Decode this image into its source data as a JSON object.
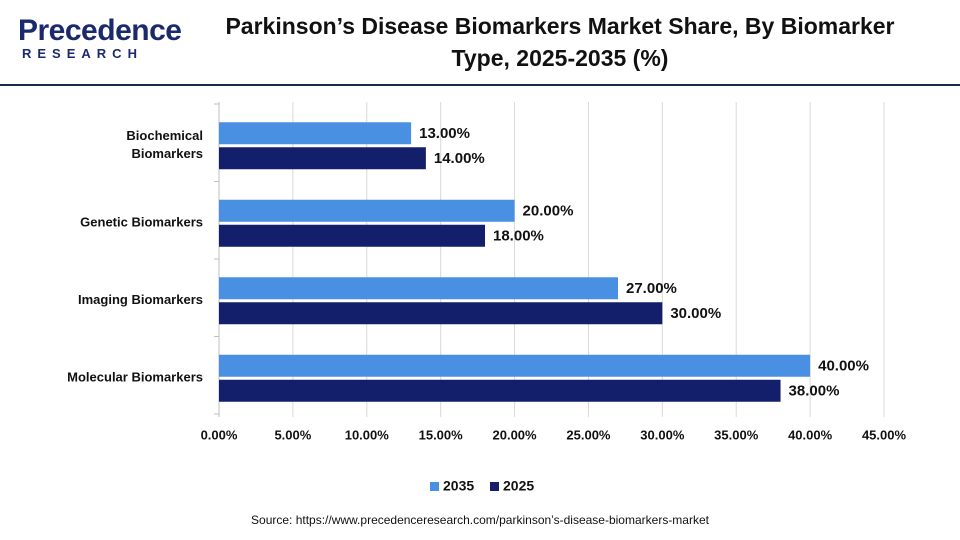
{
  "logo": {
    "name": "Precedence",
    "tagline": "RESEARCH"
  },
  "source": "Source: https://www.precedenceresearch.com/parkinson’s-disease-biomarkers-market",
  "chart_data": {
    "type": "hbar",
    "title": "Parkinson’s Disease Biomarkers Market Share, By Biomarker Type, 2025-2035 (%)",
    "categories": [
      "Biochemical Biomarkers",
      "Genetic Biomarkers",
      "Imaging Biomarkers",
      "Molecular Biomarkers"
    ],
    "series": [
      {
        "name": "2035",
        "color": "#4a90e2",
        "values": [
          13,
          20,
          27,
          40
        ],
        "value_labels": [
          "13.00%",
          "20.00%",
          "27.00%",
          "40.00%"
        ]
      },
      {
        "name": "2025",
        "color": "#141f6b",
        "values": [
          14,
          18,
          30,
          38
        ],
        "value_labels": [
          "14.00%",
          "18.00%",
          "30.00%",
          "38.00%"
        ]
      }
    ],
    "xlim": [
      0,
      45
    ],
    "xticks": [
      {
        "value": 0,
        "label": "0.00%"
      },
      {
        "value": 5,
        "label": "5.00%"
      },
      {
        "value": 10,
        "label": "10.00%"
      },
      {
        "value": 15,
        "label": "15.00%"
      },
      {
        "value": 20,
        "label": "20.00%"
      },
      {
        "value": 25,
        "label": "25.00%"
      },
      {
        "value": 30,
        "label": "30.00%"
      },
      {
        "value": 35,
        "label": "35.00%"
      },
      {
        "value": 40,
        "label": "40.00%"
      },
      {
        "value": 45,
        "label": "45.00%"
      }
    ],
    "grid": true,
    "legend": "bottom"
  }
}
